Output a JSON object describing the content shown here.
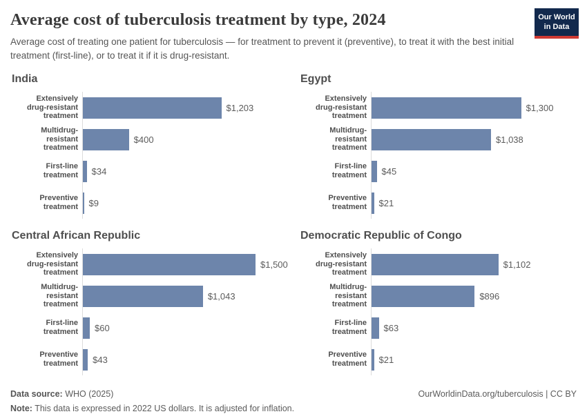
{
  "header": {
    "title": "Average cost of tuberculosis treatment by type, 2024",
    "subtitle": "Average cost of treating one patient for tuberculosis — for treatment to prevent it (preventive), to treat it with the best initial treatment (first-line), or to treat it if it is drug-resistant.",
    "logo": {
      "line1": "Our World",
      "line2": "in Data"
    }
  },
  "colors": {
    "bar": "#6d85ab",
    "axis_line": "#dcdcdc",
    "logo_background": "#12294d",
    "logo_accent": "#cf3a33"
  },
  "chart_data": [
    {
      "type": "bar",
      "title": "India",
      "orientation": "horizontal",
      "xlim": [
        0,
        1500
      ],
      "grid": false,
      "categories": [
        "Extensively drug-resistant treatment",
        "Multidrug-resistant treatment",
        "First-line treatment",
        "Preventive treatment"
      ],
      "category_lines": [
        [
          "Extensively",
          "drug-resistant",
          "treatment"
        ],
        [
          "Multidrug-resistant",
          "treatment"
        ],
        [
          "First-line treatment"
        ],
        [
          "Preventive",
          "treatment"
        ]
      ],
      "values": [
        1203,
        400,
        34,
        9
      ],
      "value_labels": [
        "$1,203",
        "$400",
        "$34",
        "$9"
      ]
    },
    {
      "type": "bar",
      "title": "Egypt",
      "orientation": "horizontal",
      "xlim": [
        0,
        1500
      ],
      "grid": false,
      "categories": [
        "Extensively drug-resistant treatment",
        "Multidrug-resistant treatment",
        "First-line treatment",
        "Preventive treatment"
      ],
      "category_lines": [
        [
          "Extensively",
          "drug-resistant",
          "treatment"
        ],
        [
          "Multidrug-resistant",
          "treatment"
        ],
        [
          "First-line treatment"
        ],
        [
          "Preventive",
          "treatment"
        ]
      ],
      "values": [
        1300,
        1038,
        45,
        21
      ],
      "value_labels": [
        "$1,300",
        "$1,038",
        "$45",
        "$21"
      ]
    },
    {
      "type": "bar",
      "title": "Central African Republic",
      "orientation": "horizontal",
      "xlim": [
        0,
        1500
      ],
      "grid": false,
      "categories": [
        "Extensively drug-resistant treatment",
        "Multidrug-resistant treatment",
        "First-line treatment",
        "Preventive treatment"
      ],
      "category_lines": [
        [
          "Extensively",
          "drug-resistant",
          "treatment"
        ],
        [
          "Multidrug-resistant",
          "treatment"
        ],
        [
          "First-line treatment"
        ],
        [
          "Preventive",
          "treatment"
        ]
      ],
      "values": [
        1500,
        1043,
        60,
        43
      ],
      "value_labels": [
        "$1,500",
        "$1,043",
        "$60",
        "$43"
      ]
    },
    {
      "type": "bar",
      "title": "Democratic Republic of Congo",
      "orientation": "horizontal",
      "xlim": [
        0,
        1500
      ],
      "grid": false,
      "categories": [
        "Extensively drug-resistant treatment",
        "Multidrug-resistant treatment",
        "First-line treatment",
        "Preventive treatment"
      ],
      "category_lines": [
        [
          "Extensively",
          "drug-resistant",
          "treatment"
        ],
        [
          "Multidrug-resistant",
          "treatment"
        ],
        [
          "First-line treatment"
        ],
        [
          "Preventive",
          "treatment"
        ]
      ],
      "values": [
        1102,
        896,
        63,
        21
      ],
      "value_labels": [
        "$1,102",
        "$896",
        "$63",
        "$21"
      ]
    }
  ],
  "footer": {
    "source_label": "Data source:",
    "source_value": " WHO (2025)",
    "note_label": "Note:",
    "note_value": " This data is expressed in 2022 US dollars. It is adjusted for inflation.",
    "credit": "OurWorldinData.org/tuberculosis | CC BY"
  }
}
